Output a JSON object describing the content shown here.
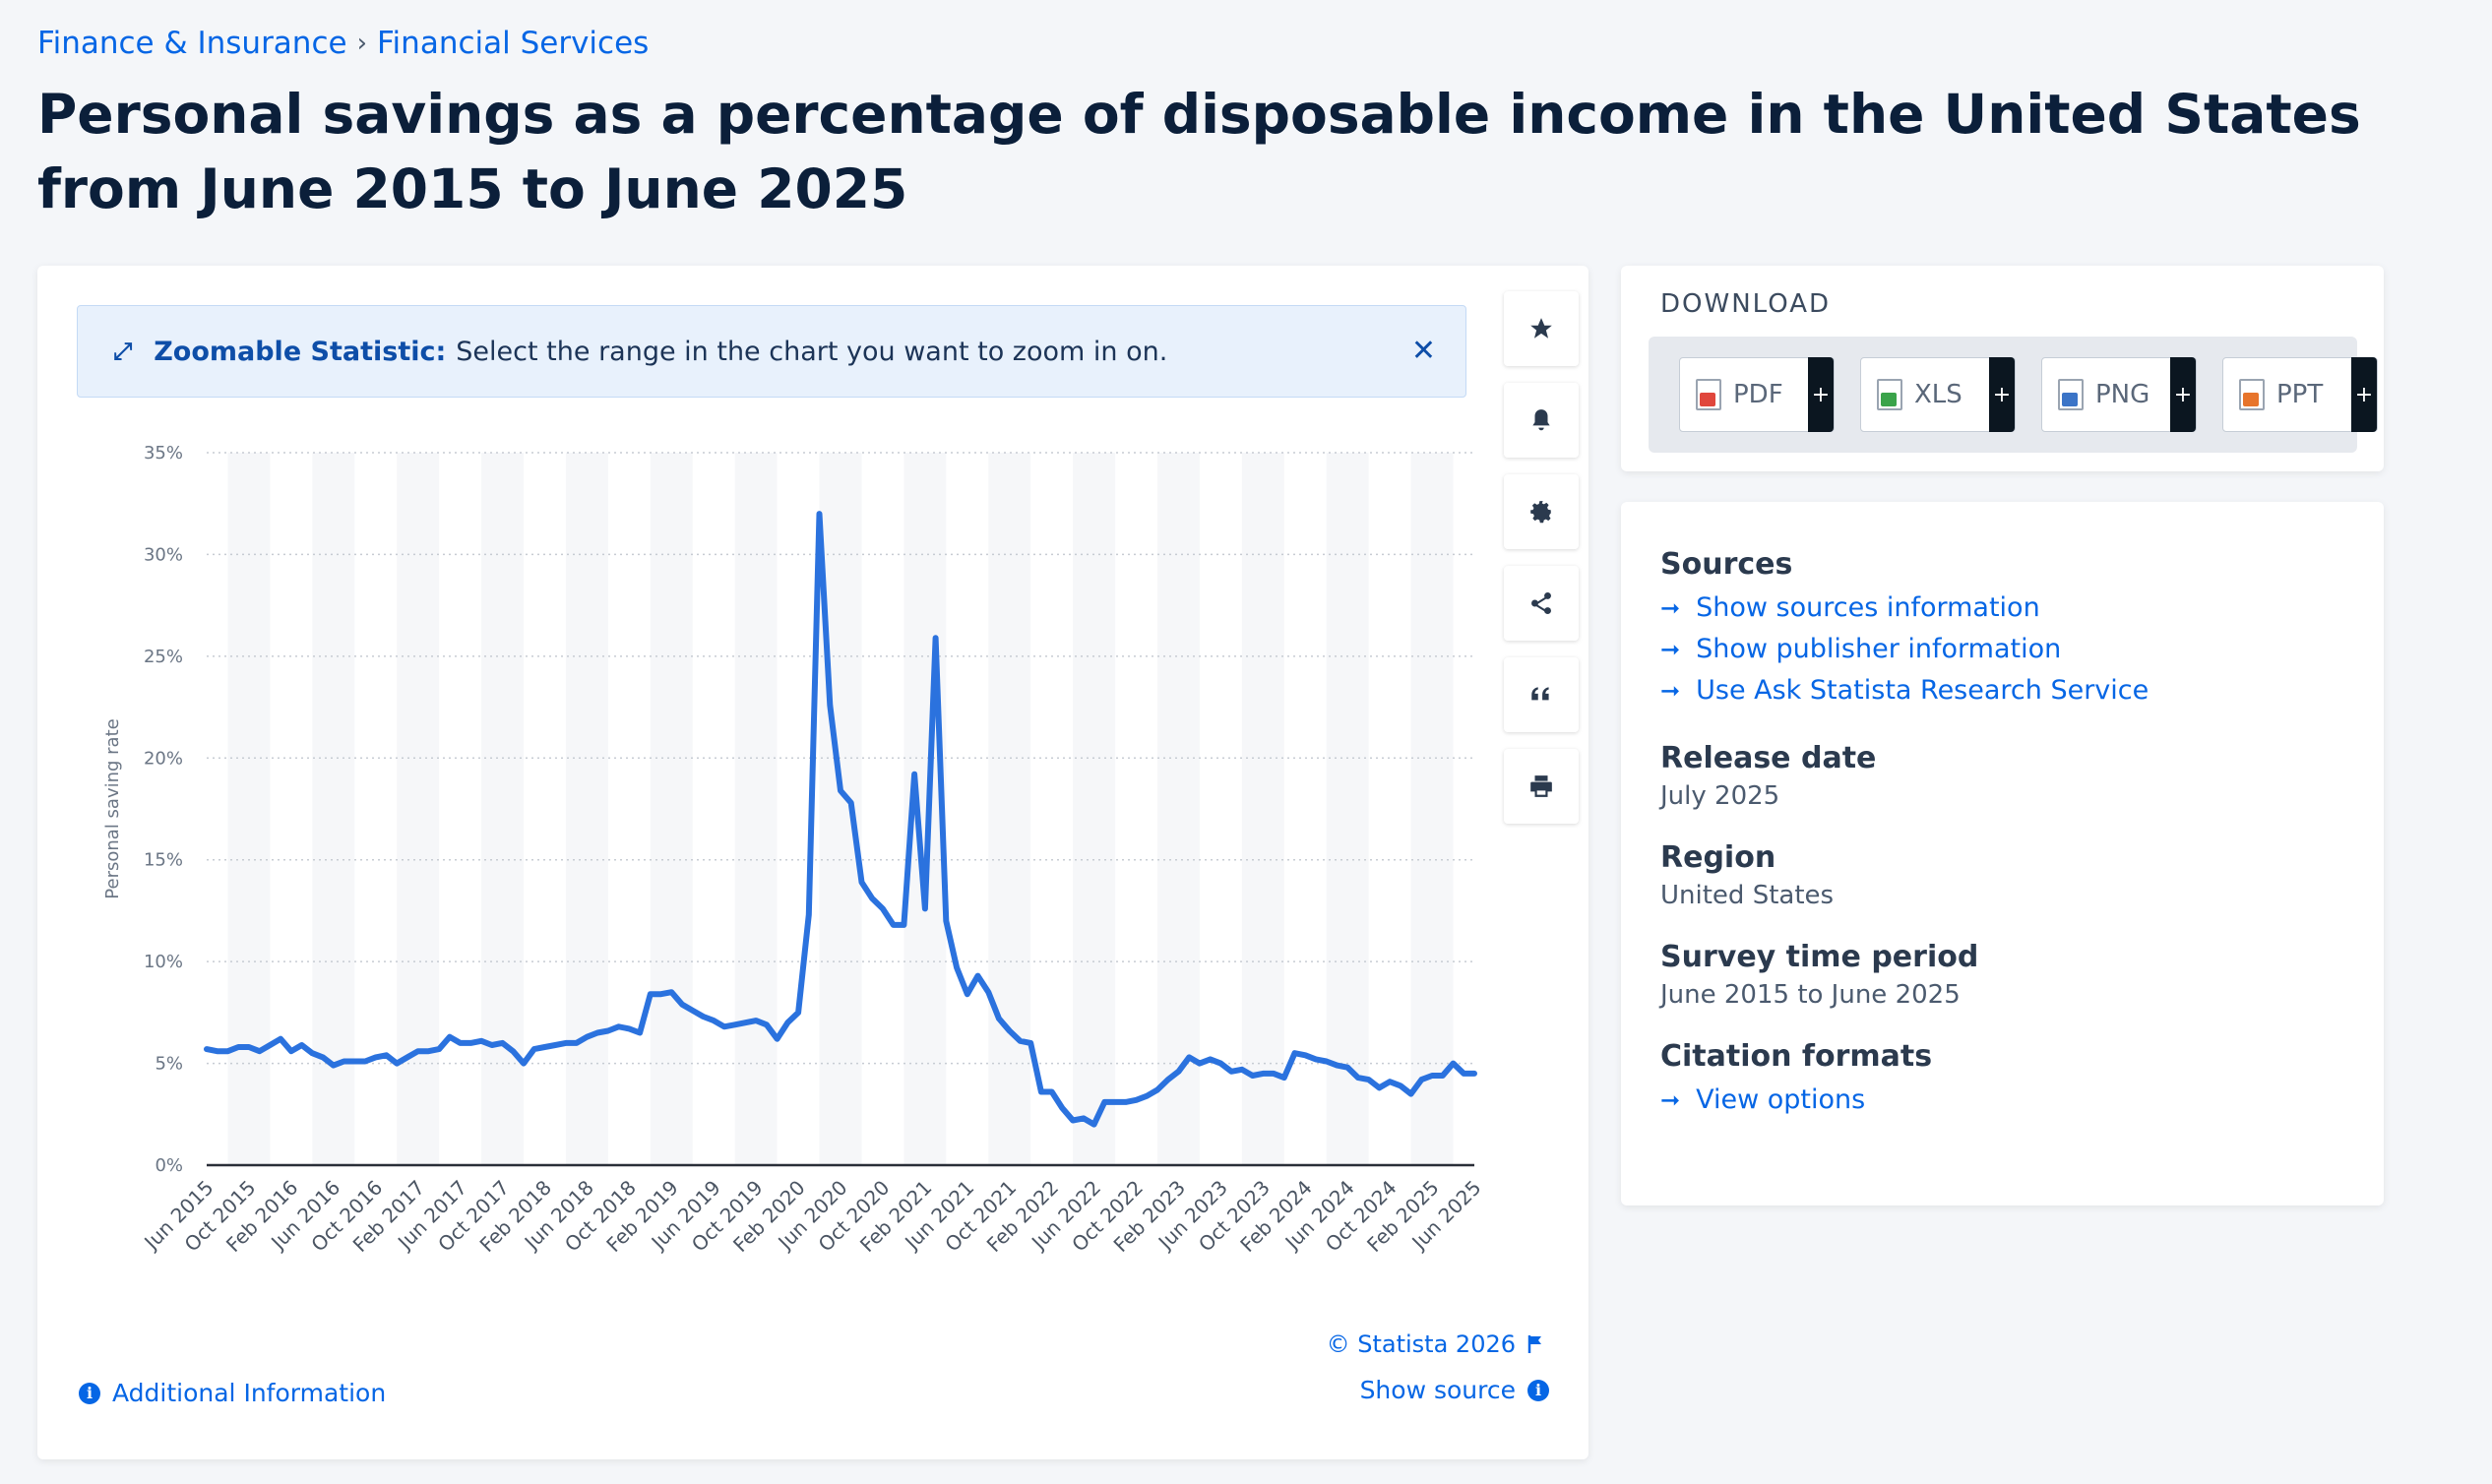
{
  "breadcrumb": [
    "Finance & Insurance",
    "Financial Services"
  ],
  "title": "Personal savings as a percentage of disposable income in the United States from June 2015 to June 2025",
  "zoom_banner": {
    "bold": "Zoomable Statistic:",
    "text": "Select the range in the chart you want to zoom in on."
  },
  "toolbar": [
    "star-icon",
    "bell-icon",
    "gear-icon",
    "share-icon",
    "quote-icon",
    "print-icon"
  ],
  "footer": {
    "copyright": "© Statista 2026",
    "show_source": "Show source",
    "additional_info": "Additional Information"
  },
  "download": {
    "title": "DOWNLOAD",
    "buttons": [
      {
        "label": "PDF",
        "color": "#e0463c"
      },
      {
        "label": "XLS",
        "color": "#3aa34a"
      },
      {
        "label": "PNG",
        "color": "#3b74c7"
      },
      {
        "label": "PPT",
        "color": "#e7742b"
      }
    ]
  },
  "info": {
    "sources_label": "Sources",
    "links": [
      "Show sources information",
      "Show publisher information",
      "Use Ask Statista Research Service"
    ],
    "release_label": "Release date",
    "release_value": "July 2025",
    "region_label": "Region",
    "region_value": "United States",
    "period_label": "Survey time period",
    "period_value": "June 2015 to June 2025",
    "citation_label": "Citation formats",
    "citation_link": "View options"
  },
  "colors": {
    "line": "#2b72de",
    "accent": "#0666e5"
  },
  "chart_data": {
    "type": "line",
    "ylabel": "Personal saving rate",
    "ylim": [
      0,
      35
    ],
    "yticks": [
      "0%",
      "5%",
      "10%",
      "15%",
      "20%",
      "25%",
      "30%",
      "35%"
    ],
    "xticks": [
      "Jun 2015",
      "Oct 2015",
      "Feb 2016",
      "Jun 2016",
      "Oct 2016",
      "Feb 2017",
      "Jun 2017",
      "Oct 2017",
      "Feb 2018",
      "Jun 2018",
      "Oct 2018",
      "Feb 2019",
      "Jun 2019",
      "Oct 2019",
      "Feb 2020",
      "Jun 2020",
      "Oct 2020",
      "Feb 2021",
      "Jun 2021",
      "Oct 2021",
      "Feb 2022",
      "Jun 2022",
      "Oct 2022",
      "Feb 2023",
      "Jun 2023",
      "Oct 2023",
      "Feb 2024",
      "Jun 2024",
      "Oct 2024",
      "Feb 2025",
      "Jun 2025"
    ],
    "series": [
      {
        "values": [
          5.7,
          5.6,
          5.6,
          5.8,
          5.8,
          5.6,
          5.9,
          6.2,
          5.6,
          5.9,
          5.5,
          5.3,
          4.9,
          5.1,
          5.1,
          5.1,
          5.3,
          5.4,
          5.0,
          5.3,
          5.6,
          5.6,
          5.7,
          6.3,
          6.0,
          6.0,
          6.1,
          5.9,
          6.0,
          5.6,
          5.0,
          5.7,
          5.8,
          5.9,
          6.0,
          6.0,
          6.3,
          6.5,
          6.6,
          6.8,
          6.7,
          6.5,
          8.4,
          8.4,
          8.5,
          7.9,
          7.6,
          7.3,
          7.1,
          6.8,
          6.9,
          7.0,
          7.1,
          6.9,
          6.2,
          7.0,
          7.5,
          12.3,
          32.0,
          22.6,
          18.4,
          17.8,
          13.9,
          13.1,
          12.6,
          11.8,
          11.8,
          19.2,
          12.6,
          25.9,
          12.0,
          9.7,
          8.4,
          9.3,
          8.5,
          7.2,
          6.6,
          6.1,
          6.0,
          3.6,
          3.6,
          2.8,
          2.2,
          2.3,
          2.0,
          3.1,
          3.1,
          3.1,
          3.2,
          3.4,
          3.7,
          4.2,
          4.6,
          5.3,
          5.0,
          5.2,
          5.0,
          4.6,
          4.7,
          4.4,
          4.5,
          4.5,
          4.3,
          5.5,
          5.4,
          5.2,
          5.1,
          4.9,
          4.8,
          4.3,
          4.2,
          3.8,
          4.1,
          3.9,
          3.5,
          4.2,
          4.4,
          4.4,
          5.0,
          4.5,
          4.5
        ]
      }
    ]
  }
}
